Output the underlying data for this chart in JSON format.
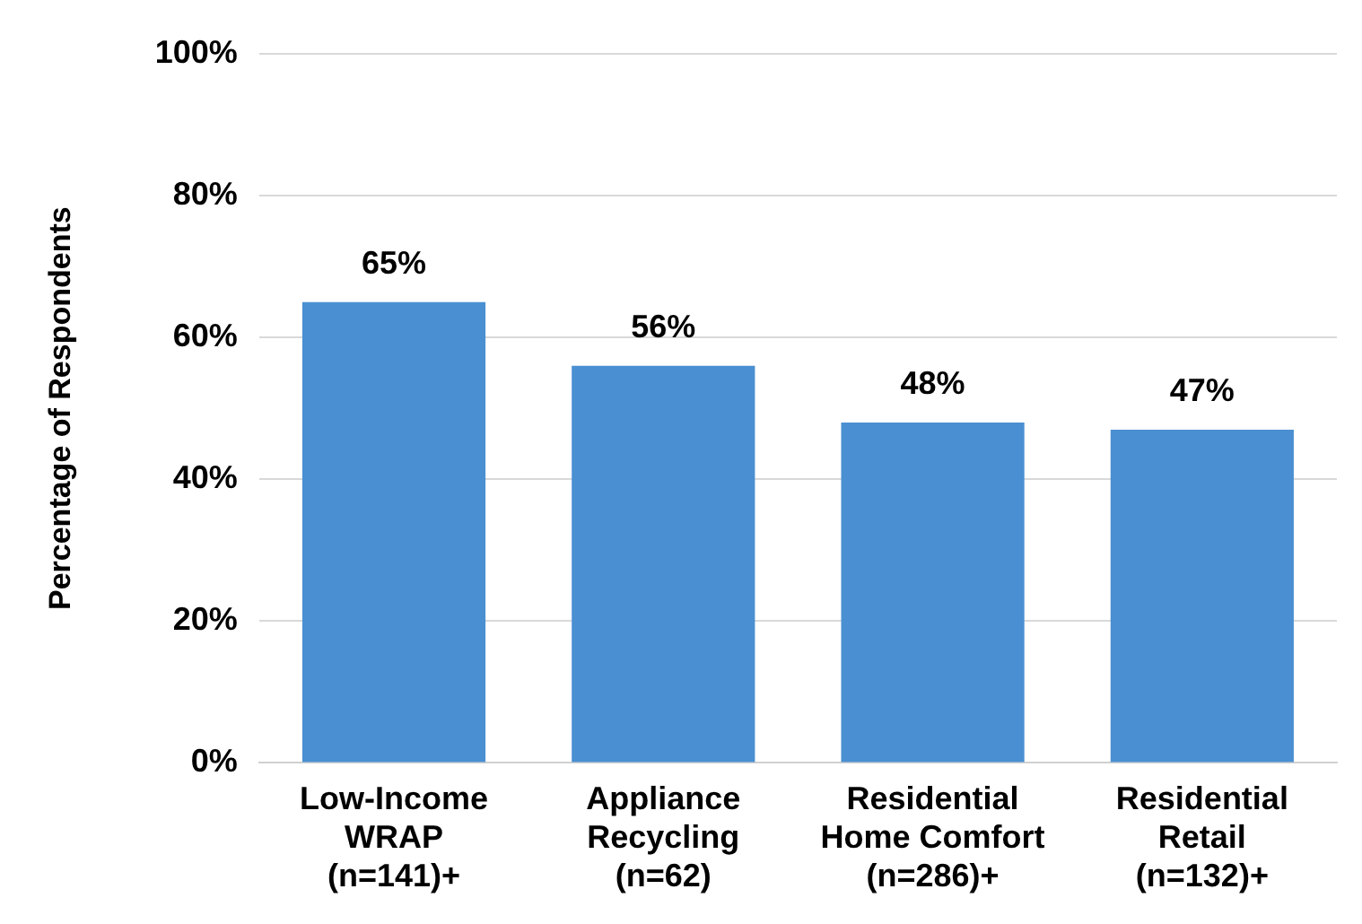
{
  "chart_data": {
    "type": "bar",
    "categories": [
      "Low-Income WRAP (n=141)+",
      "Appliance Recycling (n=62)",
      "Residential Home Comfort (n=286)+",
      "Residential Retail (n=132)+"
    ],
    "values": [
      65,
      56,
      48,
      47
    ],
    "value_labels": [
      "65%",
      "56%",
      "48%",
      "47%"
    ],
    "color": "#4a8fd1",
    "ylabel": "Percentage of Respondents",
    "ylim": [
      0,
      100
    ],
    "yticks": [
      {
        "value": 0,
        "label": "0%"
      },
      {
        "value": 20,
        "label": "20%"
      },
      {
        "value": 40,
        "label": "40%"
      },
      {
        "value": 60,
        "label": "60%"
      },
      {
        "value": 80,
        "label": "80%"
      },
      {
        "value": 100,
        "label": "100%"
      }
    ],
    "grid": "y",
    "legend": false
  }
}
